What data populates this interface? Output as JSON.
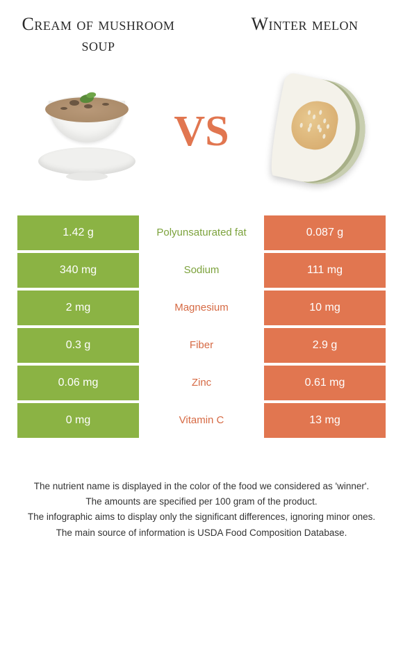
{
  "colors": {
    "left": "#8bb344",
    "right": "#e17650",
    "label_left_win": "#7ca23c",
    "label_right_win": "#d66a44",
    "vs": "#e17650"
  },
  "food_left": {
    "title": "Cream of mushroom soup"
  },
  "food_right": {
    "title": "Winter melon"
  },
  "vs": "VS",
  "rows": [
    {
      "left": "1.42 g",
      "label": "Polyunsaturated fat",
      "right": "0.087 g",
      "winner": "left"
    },
    {
      "left": "340 mg",
      "label": "Sodium",
      "right": "111 mg",
      "winner": "left"
    },
    {
      "left": "2 mg",
      "label": "Magnesium",
      "right": "10 mg",
      "winner": "right"
    },
    {
      "left": "0.3 g",
      "label": "Fiber",
      "right": "2.9 g",
      "winner": "right"
    },
    {
      "left": "0.06 mg",
      "label": "Zinc",
      "right": "0.61 mg",
      "winner": "right"
    },
    {
      "left": "0 mg",
      "label": "Vitamin C",
      "right": "13 mg",
      "winner": "right"
    }
  ],
  "footer": {
    "line1": "The nutrient name is displayed in the color of the food we considered as 'winner'.",
    "line2": "The amounts are specified per 100 gram of the product.",
    "line3": "The infographic aims to display only the significant differences, ignoring minor ones.",
    "line4": "The main source of information is USDA Food Composition Database."
  }
}
